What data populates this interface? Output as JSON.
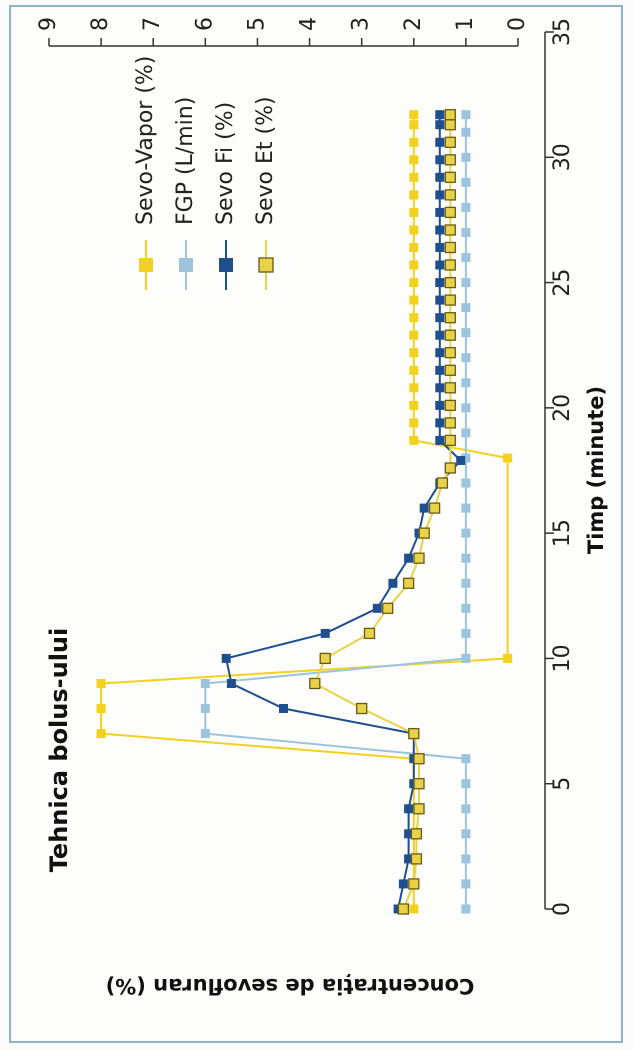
{
  "chart_data": {
    "type": "line",
    "title": "Tehnica bolus-ului",
    "xlabel": "Timp (minute)",
    "ylabel": "Concentrația de sevofluran (%)",
    "xlim": [
      0,
      35
    ],
    "ylim": [
      0,
      9
    ],
    "xticks": [
      "0",
      "5",
      "10",
      "15",
      "20",
      "25",
      "30",
      "35"
    ],
    "yticks": [
      "0",
      "1",
      "2",
      "3",
      "4",
      "5",
      "6",
      "7",
      "8",
      "9"
    ],
    "grid": false,
    "legend_position": "top-right",
    "series": [
      {
        "name": "Sevo-Vapor (%)",
        "color": "#f2d21f",
        "marker": "filled-square",
        "x": [
          0,
          1,
          2,
          3,
          4,
          5,
          6,
          7,
          8,
          9,
          10,
          18,
          18.7,
          19.4,
          20.1,
          20.8,
          21.5,
          22.2,
          22.9,
          23.6,
          24.3,
          25,
          25.7,
          26.4,
          27.1,
          27.8,
          28.5,
          29.2,
          29.9,
          30.6,
          31.3,
          31.7
        ],
        "y": [
          2,
          2,
          2,
          2,
          2,
          2,
          2,
          8,
          8,
          8,
          0.2,
          0.2,
          2,
          2,
          2,
          2,
          2,
          2,
          2,
          2,
          2,
          2,
          2,
          2,
          2,
          2,
          2,
          2,
          2,
          2,
          2,
          2
        ]
      },
      {
        "name": "FGP (L/min)",
        "color": "#9cc4dc",
        "marker": "filled-square",
        "x": [
          0,
          1,
          2,
          3,
          4,
          5,
          6,
          7,
          8,
          9,
          10,
          11,
          12,
          13,
          14,
          15,
          16,
          17,
          18,
          19,
          20,
          21,
          22,
          23,
          24,
          25,
          26,
          27,
          28,
          29,
          30,
          31,
          31.7
        ],
        "y": [
          1,
          1,
          1,
          1,
          1,
          1,
          1,
          6,
          6,
          6,
          1,
          1,
          1,
          1,
          1,
          1,
          1,
          1,
          1,
          1,
          1,
          1,
          1,
          1,
          1,
          1,
          1,
          1,
          1,
          1,
          1,
          1,
          1
        ]
      },
      {
        "name": "Sevo Fi (%)",
        "color": "#1f4f8e",
        "marker": "filled-square",
        "x": [
          0,
          1,
          2,
          3,
          4,
          5,
          6,
          7,
          8,
          9,
          10,
          11,
          12,
          13,
          14,
          15,
          16,
          17,
          17.9,
          18.7,
          19.4,
          20.1,
          20.8,
          21.5,
          22.2,
          22.9,
          23.6,
          24.3,
          25,
          25.7,
          26.4,
          27.1,
          27.8,
          28.5,
          29.2,
          29.9,
          30.6,
          31.3,
          31.7
        ],
        "y": [
          2.3,
          2.2,
          2.1,
          2.1,
          2.1,
          2,
          2,
          2,
          4.5,
          5.5,
          5.6,
          3.7,
          2.7,
          2.4,
          2.1,
          1.9,
          1.8,
          1.5,
          1.1,
          1.5,
          1.5,
          1.5,
          1.5,
          1.5,
          1.5,
          1.5,
          1.5,
          1.5,
          1.5,
          1.5,
          1.5,
          1.5,
          1.5,
          1.5,
          1.5,
          1.5,
          1.5,
          1.5,
          1.5
        ]
      },
      {
        "name": "Sevo Et (%)",
        "color": "#e8d24a",
        "marker": "outlined-square",
        "x": [
          0,
          1,
          2,
          3,
          4,
          5,
          6,
          7,
          8,
          9,
          10,
          11,
          12,
          13,
          14,
          15,
          16,
          17,
          17.6,
          18.7,
          19.4,
          20.1,
          20.8,
          21.5,
          22.2,
          22.9,
          23.6,
          24.3,
          25,
          25.7,
          26.4,
          27.1,
          27.8,
          28.5,
          29.2,
          29.9,
          30.6,
          31.3,
          31.7
        ],
        "y": [
          2.2,
          2,
          1.95,
          1.95,
          1.9,
          1.9,
          1.9,
          2,
          3,
          3.9,
          3.7,
          2.85,
          2.5,
          2.1,
          1.9,
          1.8,
          1.6,
          1.45,
          1.3,
          1.3,
          1.3,
          1.3,
          1.3,
          1.3,
          1.3,
          1.3,
          1.3,
          1.3,
          1.3,
          1.3,
          1.3,
          1.3,
          1.3,
          1.3,
          1.3,
          1.3,
          1.3,
          1.3,
          1.3
        ]
      }
    ]
  }
}
